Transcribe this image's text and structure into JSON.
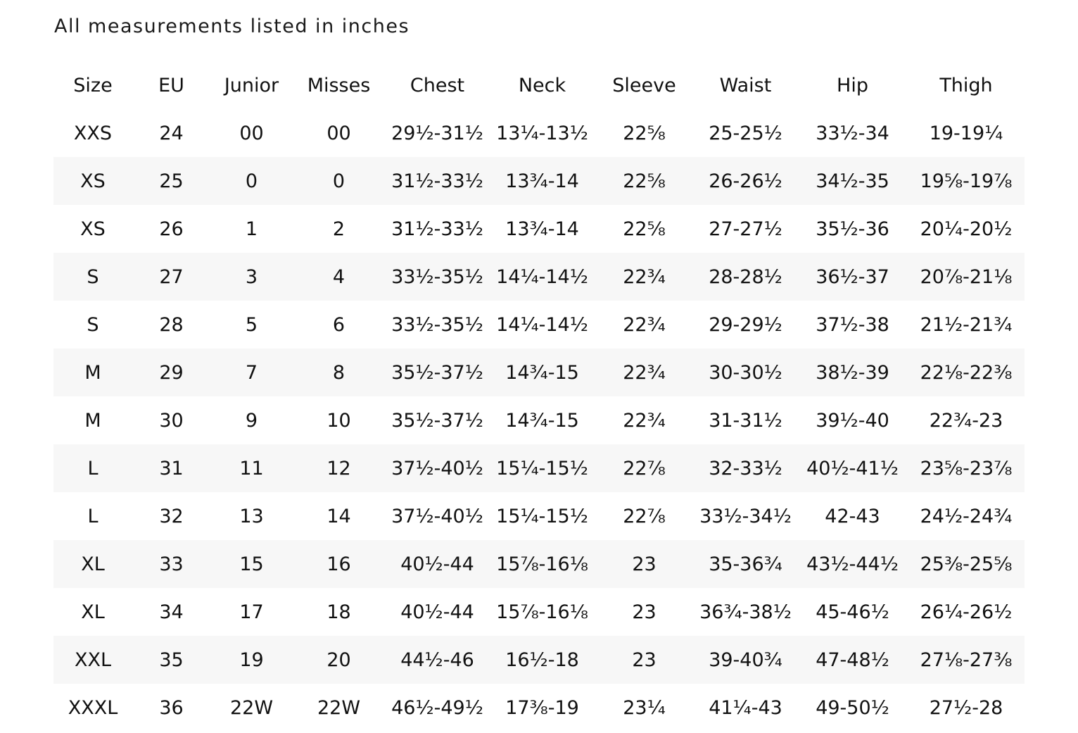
{
  "caption": "All measurements listed in inches",
  "columns": [
    "Size",
    "EU",
    "Junior",
    "Misses",
    "Chest",
    "Neck",
    "Sleeve",
    "Waist",
    "Hip",
    "Thigh"
  ],
  "rows": [
    [
      "XXS",
      "24",
      "00",
      "00",
      "29½-31½",
      "13¼-13½",
      "22⅝",
      "25-25½",
      "33½-34",
      "19-19¼"
    ],
    [
      "XS",
      "25",
      "0",
      "0",
      "31½-33½",
      "13¾-14",
      "22⅝",
      "26-26½",
      "34½-35",
      "19⅝-19⅞"
    ],
    [
      "XS",
      "26",
      "1",
      "2",
      "31½-33½",
      "13¾-14",
      "22⅝",
      "27-27½",
      "35½-36",
      "20¼-20½"
    ],
    [
      "S",
      "27",
      "3",
      "4",
      "33½-35½",
      "14¼-14½",
      "22¾",
      "28-28½",
      "36½-37",
      "20⅞-21⅛"
    ],
    [
      "S",
      "28",
      "5",
      "6",
      "33½-35½",
      "14¼-14½",
      "22¾",
      "29-29½",
      "37½-38",
      "21½-21¾"
    ],
    [
      "M",
      "29",
      "7",
      "8",
      "35½-37½",
      "14¾-15",
      "22¾",
      "30-30½",
      "38½-39",
      "22⅛-22⅜"
    ],
    [
      "M",
      "30",
      "9",
      "10",
      "35½-37½",
      "14¾-15",
      "22¾",
      "31-31½",
      "39½-40",
      "22¾-23"
    ],
    [
      "L",
      "31",
      "11",
      "12",
      "37½-40½",
      "15¼-15½",
      "22⅞",
      "32-33½",
      "40½-41½",
      "23⅝-23⅞"
    ],
    [
      "L",
      "32",
      "13",
      "14",
      "37½-40½",
      "15¼-15½",
      "22⅞",
      "33½-34½",
      "42-43",
      "24½-24¾"
    ],
    [
      "XL",
      "33",
      "15",
      "16",
      "40½-44",
      "15⅞-16⅛",
      "23",
      "35-36¾",
      "43½-44½",
      "25⅜-25⅝"
    ],
    [
      "XL",
      "34",
      "17",
      "18",
      "40½-44",
      "15⅞-16⅛",
      "23",
      "36¾-38½",
      "45-46½",
      "26¼-26½"
    ],
    [
      "XXL",
      "35",
      "19",
      "20",
      "44½-46",
      "16½-18",
      "23",
      "39-40¾",
      "47-48½",
      "27⅛-27⅜"
    ],
    [
      "XXXL",
      "36",
      "22W",
      "22W",
      "46½-49½",
      "17⅜-19",
      "23¼",
      "41¼-43",
      "49-50½",
      "27½-28"
    ]
  ],
  "colors": {
    "stripe": "#f7f7f7",
    "text": "#111111"
  }
}
